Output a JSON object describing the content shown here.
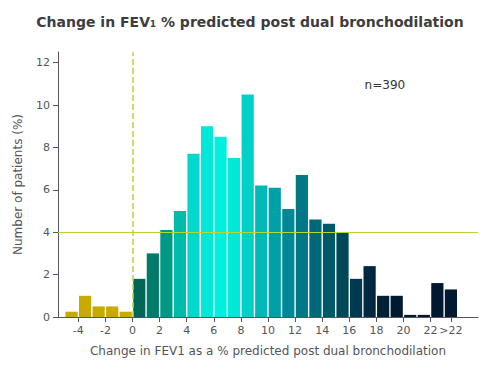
{
  "chart_data": {
    "type": "bar",
    "title": "Change in FEV₁ % predicted post dual bronchodilation",
    "xlabel": "Change in FEV1 as a % predicted post dual bronchodilation",
    "ylabel": "Number of patients (%)",
    "annotation": "n=390",
    "bins": [
      -5,
      -4,
      -3,
      -2,
      -1,
      0,
      1,
      2,
      3,
      4,
      5,
      6,
      7,
      8,
      9,
      10,
      11,
      12,
      13,
      14,
      15,
      16,
      17,
      18,
      19,
      20,
      21,
      22,
      23,
      24
    ],
    "values": [
      0.25,
      1.0,
      0.5,
      0.5,
      0.25,
      1.8,
      3.0,
      4.1,
      5.0,
      7.7,
      9.0,
      8.5,
      7.5,
      10.5,
      6.2,
      6.1,
      5.1,
      6.7,
      4.6,
      4.4,
      4.0,
      1.8,
      2.4,
      1.0,
      1.0,
      0.1,
      0.1,
      1.6,
      1.3
    ],
    "colors": [
      "#c8aa00",
      "#c8aa00",
      "#c8aa00",
      "#c8aa00",
      "#c8aa00",
      "#006655",
      "#007a6a",
      "#009988",
      "#00bbaa",
      "#00d8cc",
      "#00e8d8",
      "#00f0e0",
      "#00e8d8",
      "#00d0c8",
      "#00b8b8",
      "#00a0a8",
      "#008898",
      "#007888",
      "#006878",
      "#005868",
      "#004858",
      "#003a50",
      "#002840",
      "#002035",
      "#001830",
      "#001830",
      "#001830",
      "#001830",
      "#001830"
    ],
    "hline": 4.0,
    "vline": 0,
    "xlim": [
      -5.5,
      25.5
    ],
    "ylim": [
      0,
      12.5
    ],
    "xticks": [
      -4,
      -2,
      0,
      2,
      4,
      6,
      8,
      10,
      12,
      14,
      16,
      18,
      20,
      22,
      {
        "value": 23.5,
        "label": ">22"
      }
    ],
    "yticks": [
      0,
      2,
      4,
      6,
      8,
      10,
      12
    ],
    "grid": false
  }
}
